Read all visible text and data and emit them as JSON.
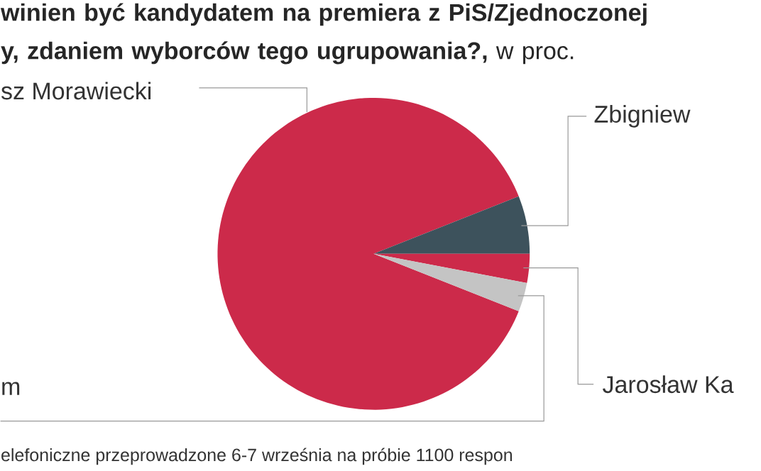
{
  "chart_data": {
    "type": "pie",
    "title": "**winien być kandydatem na premiera z PiS/Zjednoczonej y, zdaniem wyborców tego ugrupowania?,** w proc.",
    "categories": [
      "sz Morawiecki",
      "Zbigniew",
      "Jarosław Ka",
      "m"
    ],
    "values": [
      88,
      6,
      3,
      3
    ],
    "colors": [
      "#cc2a4a",
      "#3d525c",
      "#cc2a4a",
      "#c4c4c4"
    ],
    "annotations": [
      "elefoniczne przeprowadzone 6-7 września na próbie 1100 respon"
    ]
  }
}
